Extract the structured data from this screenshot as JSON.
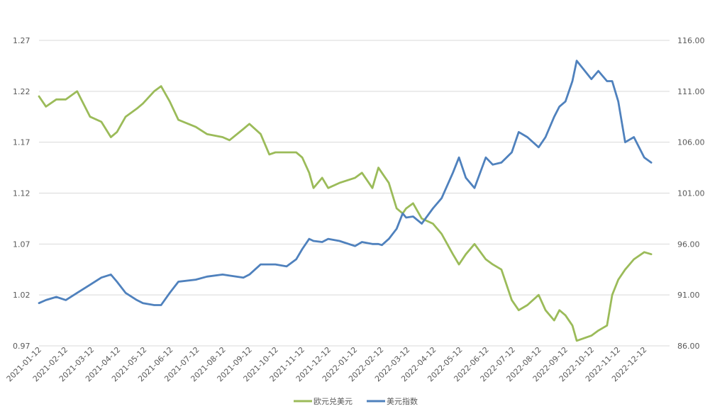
{
  "chart_data": {
    "type": "line",
    "title": "",
    "xlabel": "",
    "ylabel": "",
    "x_tick_labels": [
      "2021-01-12",
      "2021-02-12",
      "2021-03-12",
      "2021-04-12",
      "2021-05-12",
      "2021-06-12",
      "2021-07-12",
      "2021-08-12",
      "2021-09-12",
      "2021-10-12",
      "2021-11-12",
      "2021-12-12",
      "2022-01-12",
      "2022-02-12",
      "2022-03-12",
      "2022-04-12",
      "2022-05-12",
      "2022-06-12",
      "2022-07-12",
      "2022-08-12",
      "2022-09-12",
      "2022-10-12",
      "2022-11-12",
      "2022-12-12"
    ],
    "y_left": {
      "lim": [
        0.97,
        1.27
      ],
      "tick_labels": [
        "0.97",
        "1.02",
        "1.07",
        "1.12",
        "1.17",
        "1.22",
        "1.27"
      ]
    },
    "y_right": {
      "lim": [
        86,
        116
      ],
      "tick_labels": [
        "86.00",
        "91.00",
        "96.00",
        "101.00",
        "106.00",
        "111.00",
        "116.00"
      ]
    },
    "grid": true,
    "legend_position": "bottom",
    "series": [
      {
        "name": "欧元兑美元",
        "axis": "left",
        "color": "#9bbb59",
        "x": [
          "2021-01-12",
          "2021-01-20",
          "2021-02-01",
          "2021-02-12",
          "2021-02-25",
          "2021-03-12",
          "2021-03-25",
          "2021-04-05",
          "2021-04-12",
          "2021-04-22",
          "2021-05-05",
          "2021-05-12",
          "2021-05-25",
          "2021-06-02",
          "2021-06-12",
          "2021-06-22",
          "2021-07-12",
          "2021-07-25",
          "2021-08-12",
          "2021-08-20",
          "2021-09-05",
          "2021-09-12",
          "2021-09-25",
          "2021-10-05",
          "2021-10-12",
          "2021-10-25",
          "2021-11-05",
          "2021-11-12",
          "2021-11-20",
          "2021-11-25",
          "2021-12-05",
          "2021-12-12",
          "2021-12-25",
          "2022-01-12",
          "2022-01-20",
          "2022-02-01",
          "2022-02-08",
          "2022-02-12",
          "2022-02-20",
          "2022-03-01",
          "2022-03-08",
          "2022-03-12",
          "2022-03-20",
          "2022-03-30",
          "2022-04-12",
          "2022-04-22",
          "2022-05-05",
          "2022-05-12",
          "2022-05-20",
          "2022-05-30",
          "2022-06-12",
          "2022-06-20",
          "2022-06-30",
          "2022-07-12",
          "2022-07-20",
          "2022-07-30",
          "2022-08-12",
          "2022-08-20",
          "2022-08-30",
          "2022-09-05",
          "2022-09-12",
          "2022-09-20",
          "2022-09-25",
          "2022-10-12",
          "2022-10-20",
          "2022-10-30",
          "2022-11-05",
          "2022-11-12",
          "2022-11-20",
          "2022-11-30",
          "2022-12-12",
          "2022-12-20"
        ],
        "values": [
          1.215,
          1.205,
          1.212,
          1.212,
          1.22,
          1.195,
          1.19,
          1.175,
          1.18,
          1.195,
          1.203,
          1.208,
          1.22,
          1.225,
          1.21,
          1.192,
          1.185,
          1.178,
          1.175,
          1.172,
          1.183,
          1.188,
          1.178,
          1.158,
          1.16,
          1.16,
          1.16,
          1.155,
          1.14,
          1.125,
          1.135,
          1.125,
          1.13,
          1.135,
          1.14,
          1.125,
          1.145,
          1.14,
          1.13,
          1.105,
          1.1,
          1.105,
          1.11,
          1.095,
          1.09,
          1.08,
          1.06,
          1.05,
          1.06,
          1.07,
          1.055,
          1.05,
          1.045,
          1.015,
          1.005,
          1.01,
          1.02,
          1.005,
          0.995,
          1.005,
          1.0,
          0.99,
          0.975,
          0.98,
          0.985,
          0.99,
          1.02,
          1.035,
          1.045,
          1.055,
          1.062,
          1.06
        ]
      },
      {
        "name": "美元指数",
        "axis": "right",
        "color": "#4f81bd",
        "x": [
          "2021-01-12",
          "2021-01-20",
          "2021-02-01",
          "2021-02-12",
          "2021-02-25",
          "2021-03-12",
          "2021-03-25",
          "2021-04-05",
          "2021-04-12",
          "2021-04-22",
          "2021-05-05",
          "2021-05-12",
          "2021-05-25",
          "2021-06-02",
          "2021-06-12",
          "2021-06-22",
          "2021-07-12",
          "2021-07-25",
          "2021-08-12",
          "2021-08-20",
          "2021-09-05",
          "2021-09-12",
          "2021-09-25",
          "2021-10-05",
          "2021-10-12",
          "2021-10-25",
          "2021-11-05",
          "2021-11-12",
          "2021-11-20",
          "2021-11-25",
          "2021-12-05",
          "2021-12-12",
          "2021-12-25",
          "2022-01-12",
          "2022-01-20",
          "2022-02-01",
          "2022-02-08",
          "2022-02-12",
          "2022-02-20",
          "2022-03-01",
          "2022-03-08",
          "2022-03-12",
          "2022-03-20",
          "2022-03-30",
          "2022-04-12",
          "2022-04-22",
          "2022-05-05",
          "2022-05-12",
          "2022-05-20",
          "2022-05-30",
          "2022-06-12",
          "2022-06-20",
          "2022-06-30",
          "2022-07-12",
          "2022-07-20",
          "2022-07-30",
          "2022-08-12",
          "2022-08-20",
          "2022-08-30",
          "2022-09-05",
          "2022-09-12",
          "2022-09-20",
          "2022-09-25",
          "2022-10-12",
          "2022-10-20",
          "2022-10-30",
          "2022-11-05",
          "2022-11-12",
          "2022-11-20",
          "2022-11-30",
          "2022-12-12",
          "2022-12-20"
        ],
        "values": [
          90.2,
          90.5,
          90.8,
          90.5,
          91.2,
          92.0,
          92.7,
          93.0,
          92.3,
          91.2,
          90.5,
          90.2,
          90.0,
          90.0,
          91.2,
          92.3,
          92.5,
          92.8,
          93.0,
          92.9,
          92.7,
          93.0,
          94.0,
          94.0,
          94.0,
          93.8,
          94.5,
          95.5,
          96.5,
          96.3,
          96.2,
          96.5,
          96.3,
          95.8,
          96.2,
          96.0,
          96.0,
          95.9,
          96.5,
          97.5,
          99.0,
          98.6,
          98.7,
          98.0,
          99.5,
          100.5,
          103.0,
          104.5,
          102.5,
          101.5,
          104.5,
          103.8,
          104.0,
          105.0,
          107.0,
          106.5,
          105.5,
          106.5,
          108.5,
          109.5,
          110.0,
          112.0,
          114.0,
          112.2,
          113.0,
          112.0,
          112.0,
          110.0,
          106.0,
          106.5,
          104.5,
          104.0
        ]
      }
    ]
  }
}
